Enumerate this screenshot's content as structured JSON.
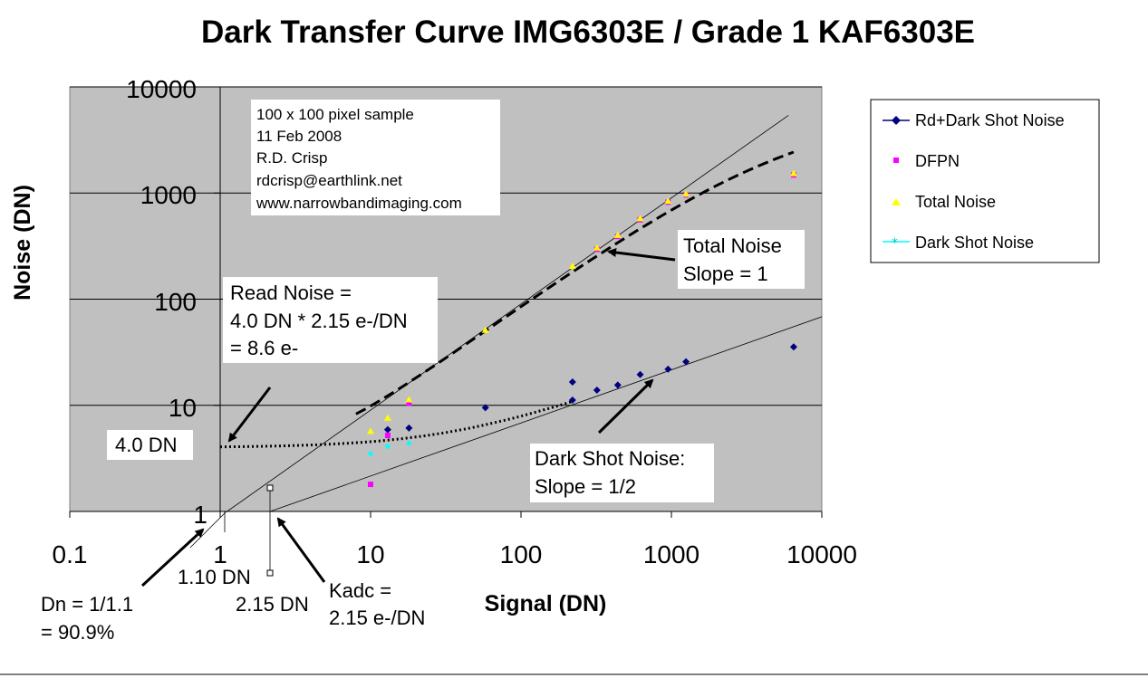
{
  "chart_data": {
    "type": "scatter",
    "title": "Dark Transfer Curve IMG6303E / Grade 1 KAF6303E",
    "xlabel": "Signal (DN)",
    "ylabel": "Noise (DN)",
    "x_scale": "log",
    "y_scale": "log",
    "xlim": [
      0.1,
      10000
    ],
    "ylim": [
      1,
      10000
    ],
    "x_ticks": [
      "0.1",
      "1",
      "10",
      "100",
      "1000",
      "10000"
    ],
    "y_ticks": [
      "1",
      "10",
      "100",
      "1000",
      "10000"
    ],
    "grid": "horizontal major gridlines",
    "plot_background": "#c0c0c0",
    "legend_position": "right",
    "series": [
      {
        "name": "Rd+Dark Shot Noise",
        "color": "#000080",
        "marker": "diamond",
        "points": [
          [
            13,
            5.9
          ],
          [
            18,
            6.1
          ],
          [
            58,
            9.5
          ],
          [
            220,
            11.2
          ],
          [
            220,
            16.6
          ],
          [
            320,
            13.9
          ],
          [
            440,
            15.5
          ],
          [
            620,
            19.5
          ],
          [
            950,
            21.9
          ],
          [
            1250,
            25.7
          ],
          [
            6500,
            35.5
          ]
        ]
      },
      {
        "name": "DFPN",
        "color": "#ff00ff",
        "marker": "square",
        "points": [
          [
            10,
            1.8
          ],
          [
            13,
            5.2
          ],
          [
            18,
            10.5
          ],
          [
            320,
            295
          ],
          [
            440,
            390
          ],
          [
            620,
            560
          ],
          [
            950,
            820
          ],
          [
            1250,
            960
          ],
          [
            6500,
            1480
          ]
        ]
      },
      {
        "name": "Total Noise",
        "color": "#ffff00",
        "marker": "triangle",
        "points": [
          [
            10,
            5.7
          ],
          [
            13,
            7.6
          ],
          [
            18,
            11.3
          ],
          [
            58,
            51
          ],
          [
            220,
            205
          ],
          [
            320,
            305
          ],
          [
            440,
            400
          ],
          [
            620,
            575
          ],
          [
            950,
            840
          ],
          [
            1250,
            980
          ],
          [
            6500,
            1530
          ]
        ]
      },
      {
        "name": "Dark Shot Noise",
        "color": "#00ffff",
        "marker": "star",
        "points": [
          [
            10,
            3.5
          ],
          [
            13,
            4.1
          ],
          [
            18,
            4.4
          ]
        ]
      }
    ],
    "annotations": {
      "info_box": [
        "100 x 100 pixel sample",
        "11 Feb 2008",
        "R.D. Crisp",
        "rdcrisp@earthlink.net",
        "www.narrowbandimaging.com"
      ],
      "read_noise": [
        "Read Noise =",
        "4.0 DN * 2.15 e-/DN",
        "= 8.6 e-"
      ],
      "read_noise_value": "4.0 DN",
      "total_noise": [
        "Total Noise",
        "Slope = 1"
      ],
      "dark_shot_noise": [
        "Dark Shot Noise:",
        "Slope = 1/2"
      ],
      "dn_label": [
        "Dn = 1/1.1",
        "= 90.9%"
      ],
      "x_intercept_1": "1.10 DN",
      "x_intercept_2": "2.15 DN",
      "kadc": [
        "Kadc =",
        "2.15 e-/DN"
      ]
    }
  }
}
